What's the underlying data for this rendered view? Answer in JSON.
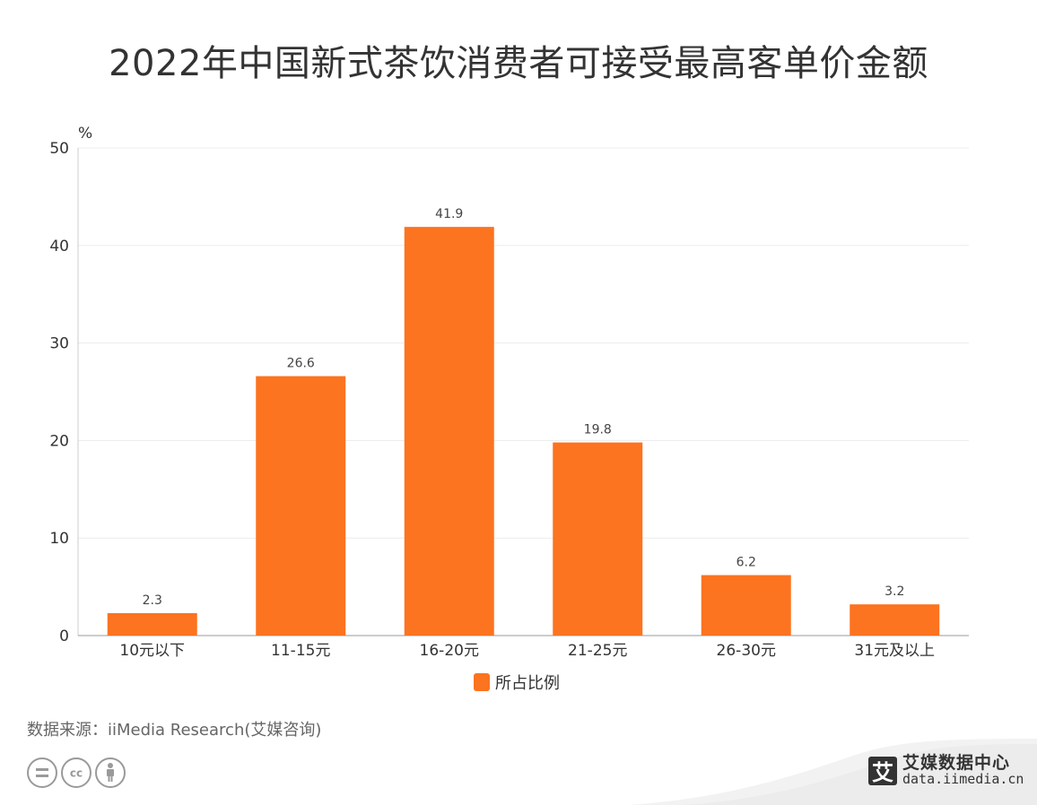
{
  "header": {
    "title": "2022年中国新式茶饮消费者可接受最高客单价金额"
  },
  "chart_data": {
    "type": "bar",
    "unit_label": "%",
    "categories": [
      "10元以下",
      "11-15元",
      "16-20元",
      "21-25元",
      "26-30元",
      "31元及以上"
    ],
    "series": [
      {
        "name": "所占比例",
        "values": [
          2.3,
          26.6,
          41.9,
          19.8,
          6.2,
          3.2
        ],
        "color": "#fc7320"
      }
    ],
    "ylim": [
      0,
      50
    ],
    "yticks": [
      0,
      10,
      20,
      30,
      40,
      50
    ],
    "grid": true,
    "legend_position": "bottom-center",
    "data_labels": true
  },
  "footer": {
    "source": "数据来源：iiMedia Research(艾媒咨询)",
    "license_icons": [
      "equals-icon",
      "cc-icon",
      "person-icon"
    ],
    "logo_glyph": "艾",
    "logo_name": "艾媒数据中心",
    "logo_url": "data.iimedia.cn"
  }
}
